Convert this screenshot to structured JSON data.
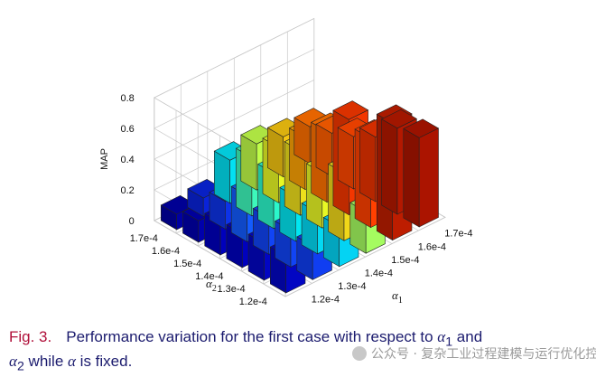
{
  "chart_data": {
    "type": "bar3d",
    "zlabel": "MAP",
    "xlabel": "α1",
    "ylabel": "α2",
    "zlim": [
      0,
      0.8
    ],
    "zticks": [
      "0",
      "0.2",
      "0.4",
      "0.6",
      "0.8"
    ],
    "x_categories": [
      "1.2e-4",
      "1.3e-4",
      "1.4e-4",
      "1.5e-4",
      "1.6e-4",
      "1.7e-4"
    ],
    "y_categories": [
      "1.2e-4",
      "1.3e-4",
      "1.4e-4",
      "1.5e-4",
      "1.6e-4",
      "1.7e-4"
    ],
    "grid": true,
    "values": [
      [
        0.24,
        0.22,
        0.26,
        0.27,
        0.76,
        0.58
      ],
      [
        0.24,
        0.24,
        0.27,
        0.44,
        0.58,
        0.56
      ],
      [
        0.22,
        0.24,
        0.29,
        0.36,
        0.62,
        0.42
      ],
      [
        0.21,
        0.3,
        0.36,
        0.42,
        0.46,
        0.34
      ],
      [
        0.14,
        0.18,
        0.38,
        0.36,
        0.34,
        0.28
      ],
      [
        0.1,
        0.12,
        0.28,
        0.3,
        0.26,
        0.24
      ]
    ]
  },
  "caption": {
    "fig": "Fig. 3.",
    "part1": "Performance variation for the first case with respect to ",
    "sym1": "α",
    "sub1": "1",
    "part2": " and",
    "sym2": "α",
    "sub2": "2",
    "part3": " while ",
    "sym3": "α",
    "part4": " is fixed."
  },
  "watermark": "公众号 · 复杂工业过程建模与运行优化控制"
}
